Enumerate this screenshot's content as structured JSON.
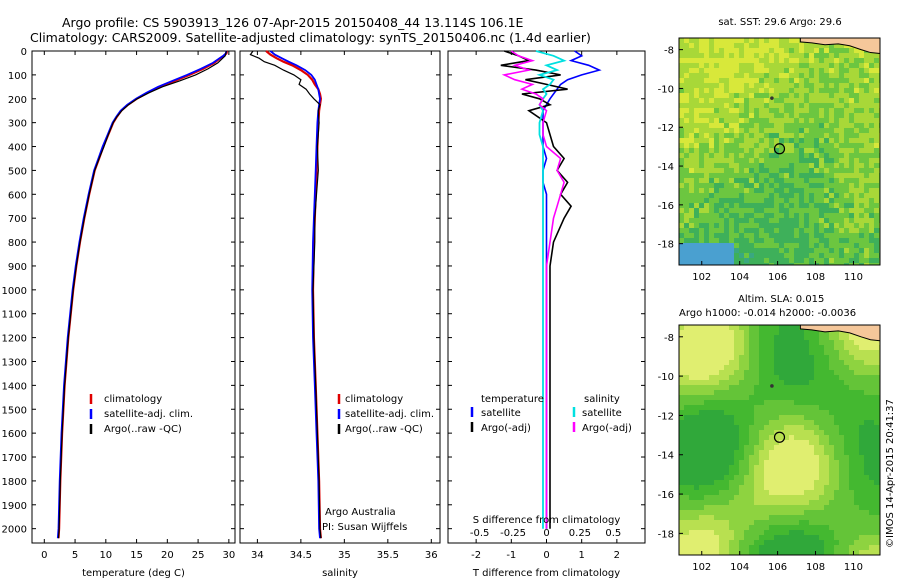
{
  "header": {
    "title_line1": "Argo profile: CS 5903913_126 07-Apr-2015 20150408_44 13.114S 106.1E",
    "title_line2": "Climatology: CARS2009. Satellite-adjusted climatology: synTS_20150406.nc (1.4d earlier)"
  },
  "credit": "©IMOS 14-Apr-2015 20:41:37",
  "colors": {
    "climatology": "#e00000",
    "satellite": "#0000ff",
    "argo": "#000000",
    "sal_satellite": "#00e0e0",
    "sal_argo": "#ff00ff",
    "land": "#f5c79a"
  },
  "chart_data": [
    {
      "type": "line",
      "id": "temperature",
      "xlabel": "temperature (deg C)",
      "xlim": [
        -2,
        31
      ],
      "ylim": [
        2060,
        0
      ],
      "xticks": [
        "0",
        "5",
        "10",
        "15",
        "20",
        "25",
        "30"
      ],
      "yticks": [
        "0",
        "100",
        "200",
        "300",
        "400",
        "500",
        "600",
        "700",
        "800",
        "900",
        "1000",
        "1100",
        "1200",
        "1300",
        "1400",
        "1500",
        "1600",
        "1700",
        "1800",
        "1900",
        "2000"
      ],
      "y": [
        0,
        10,
        20,
        30,
        50,
        75,
        100,
        125,
        150,
        175,
        200,
        225,
        250,
        275,
        300,
        350,
        400,
        450,
        500,
        600,
        700,
        800,
        900,
        1000,
        1200,
        1400,
        1600,
        1800,
        2000,
        2040
      ],
      "legend": [
        "climatology",
        "satellite-adj. clim.",
        "Argo(..raw -QC)"
      ],
      "series": [
        {
          "name": "climatology",
          "values": [
            29.7,
            29.6,
            29.2,
            28.6,
            27.6,
            25.8,
            23.6,
            21.2,
            18.8,
            16.8,
            15.0,
            13.6,
            12.5,
            11.8,
            11.2,
            10.4,
            9.6,
            8.9,
            8.2,
            7.3,
            6.5,
            5.8,
            5.2,
            4.7,
            3.9,
            3.3,
            2.9,
            2.6,
            2.4,
            2.3
          ]
        },
        {
          "name": "satellite-adj. clim.",
          "values": [
            29.6,
            29.5,
            29.1,
            28.5,
            27.4,
            25.4,
            23.2,
            20.8,
            18.5,
            16.6,
            14.9,
            13.5,
            12.4,
            11.7,
            11.1,
            10.3,
            9.5,
            8.8,
            8.1,
            7.2,
            6.4,
            5.7,
            5.1,
            4.6,
            3.8,
            3.2,
            2.8,
            2.5,
            2.3,
            2.2
          ]
        },
        {
          "name": "Argo(..raw -QC)",
          "values": [
            29.6,
            29.5,
            29.4,
            29.0,
            28.2,
            26.6,
            24.6,
            22.0,
            19.2,
            17.0,
            15.1,
            13.7,
            12.6,
            11.8,
            11.2,
            10.4,
            9.7,
            8.9,
            8.2,
            7.3,
            6.5,
            5.8,
            5.2,
            4.7,
            3.9,
            3.3,
            2.9,
            2.6,
            2.4,
            2.3
          ]
        }
      ]
    },
    {
      "type": "line",
      "id": "salinity",
      "xlabel": "salinity",
      "xlim": [
        33.8,
        36.1
      ],
      "ylim": [
        2060,
        0
      ],
      "xticks": [
        "34",
        "34.5",
        "35",
        "35.5",
        "36"
      ],
      "y": [
        0,
        15,
        30,
        45,
        60,
        80,
        100,
        120,
        140,
        160,
        180,
        200,
        225,
        250,
        300,
        400,
        500,
        600,
        700,
        800,
        1000,
        1200,
        1400,
        1600,
        1800,
        2000,
        2040
      ],
      "legend": [
        "climatology",
        "satellite-adj. clim.",
        "Argo(..raw -QC)"
      ],
      "annotation": [
        "Argo Australia",
        "PI: Susan Wijffels"
      ],
      "series": [
        {
          "name": "climatology",
          "values": [
            34.1,
            34.15,
            34.22,
            34.3,
            34.4,
            34.5,
            34.58,
            34.63,
            34.66,
            34.7,
            34.72,
            34.73,
            34.72,
            34.71,
            34.7,
            34.69,
            34.68,
            34.67,
            34.66,
            34.65,
            34.64,
            34.65,
            34.67,
            34.69,
            34.71,
            34.72,
            34.73
          ]
        },
        {
          "name": "satellite-adj. clim.",
          "values": [
            34.15,
            34.2,
            34.28,
            34.36,
            34.45,
            34.55,
            34.62,
            34.66,
            34.68,
            34.7,
            34.71,
            34.72,
            34.71,
            34.7,
            34.69,
            34.68,
            34.67,
            34.66,
            34.65,
            34.64,
            34.63,
            34.64,
            34.66,
            34.68,
            34.7,
            34.71,
            34.72
          ]
        },
        {
          "name": "Argo(..raw -QC)",
          "values": [
            33.95,
            33.92,
            34.02,
            34.08,
            34.2,
            34.3,
            34.42,
            34.5,
            34.48,
            34.56,
            34.6,
            34.65,
            34.72,
            34.7,
            34.71,
            34.69,
            34.7,
            34.68,
            34.66,
            34.66,
            34.64,
            34.65,
            34.67,
            34.69,
            34.71,
            34.72,
            34.73
          ]
        }
      ]
    },
    {
      "type": "line",
      "id": "difference",
      "xlabel": "T difference from climatology",
      "xlabel_top": "S difference from climatology",
      "xlim": [
        -2.8,
        2.8
      ],
      "ylim": [
        2060,
        0
      ],
      "xticks": [
        "-2",
        "-1",
        "0",
        "1",
        "2"
      ],
      "xticks_top": [
        "-0.5",
        "-0.25",
        "0",
        "0.25",
        "0.5"
      ],
      "y": [
        0,
        20,
        40,
        60,
        80,
        100,
        120,
        140,
        160,
        180,
        200,
        225,
        250,
        300,
        350,
        400,
        450,
        500,
        550,
        600,
        650,
        700,
        800,
        900,
        1000,
        1200,
        1400,
        1600,
        1800,
        2000
      ],
      "legend": [
        "temperature",
        "satellite",
        "Argo(-adj)",
        "salinity",
        "satellite",
        "Argo(-adj)"
      ],
      "series": [
        {
          "name": "satellite",
          "values": [
            0.8,
            1.0,
            0.7,
            1.2,
            1.5,
            1.0,
            0.6,
            0.4,
            0.3,
            0.2,
            0.1,
            0.0,
            -0.1,
            -0.1,
            -0.1,
            -0.1,
            0.0,
            -0.1,
            -0.1,
            0.0,
            0.0,
            0.0,
            0.0,
            0.0,
            0.0,
            0.0,
            0.0,
            0.0,
            0.0,
            0.0
          ]
        },
        {
          "name": "Argo(-adj)",
          "values": [
            -1.2,
            -0.8,
            -0.5,
            -1.3,
            -0.3,
            0.4,
            -0.6,
            0.0,
            0.6,
            -0.7,
            -0.2,
            0.1,
            -0.5,
            0.0,
            0.1,
            0.2,
            0.5,
            0.3,
            0.6,
            0.4,
            0.7,
            0.5,
            0.2,
            0.1,
            0.1,
            0.1,
            0.1,
            0.1,
            0.1,
            0.1
          ]
        },
        {
          "name": "sal satellite",
          "values": [
            -0.3,
            0.2,
            0.5,
            0.0,
            0.3,
            -0.2,
            0.2,
            0.1,
            -0.1,
            0.0,
            -0.1,
            -0.2,
            -0.1,
            -0.2,
            -0.2,
            -0.1,
            -0.1,
            -0.1,
            -0.1,
            -0.1,
            -0.1,
            -0.1,
            -0.1,
            -0.1,
            -0.1,
            -0.1,
            -0.1,
            -0.1,
            -0.1,
            -0.1
          ]
        },
        {
          "name": "sal Argo(-adj)",
          "values": [
            -1.0,
            -0.8,
            -0.4,
            -0.9,
            -0.5,
            -1.2,
            -0.9,
            -0.4,
            -0.7,
            -0.3,
            -0.1,
            -0.2,
            0.0,
            -0.1,
            -0.1,
            0.0,
            0.4,
            0.3,
            0.5,
            0.4,
            0.3,
            0.2,
            0.1,
            0.0,
            0.0,
            0.0,
            0.0,
            0.0,
            0.0,
            0.0
          ]
        }
      ]
    },
    {
      "type": "heatmap",
      "id": "sst-map",
      "title": "sat. SST: 29.6 Argo: 29.6",
      "xticks": [
        "102",
        "104",
        "106",
        "108",
        "110"
      ],
      "yticks": [
        "-8",
        "-10",
        "-12",
        "-14",
        "-16",
        "-18"
      ],
      "xlim": [
        100.8,
        111.4
      ],
      "ylim": [
        -19.1,
        -7.4
      ],
      "marker": {
        "lon": 106.1,
        "lat": -13.11
      }
    },
    {
      "type": "heatmap",
      "id": "sla-map",
      "title_line1": "Altim. SLA: 0.015",
      "title_line2": "Argo h1000: -0.014 h2000: -0.0036",
      "xticks": [
        "102",
        "104",
        "106",
        "108",
        "110"
      ],
      "yticks": [
        "-8",
        "-10",
        "-12",
        "-14",
        "-16",
        "-18"
      ],
      "xlim": [
        100.8,
        111.4
      ],
      "ylim": [
        -19.1,
        -7.4
      ],
      "marker": {
        "lon": 106.1,
        "lat": -13.11
      }
    }
  ]
}
